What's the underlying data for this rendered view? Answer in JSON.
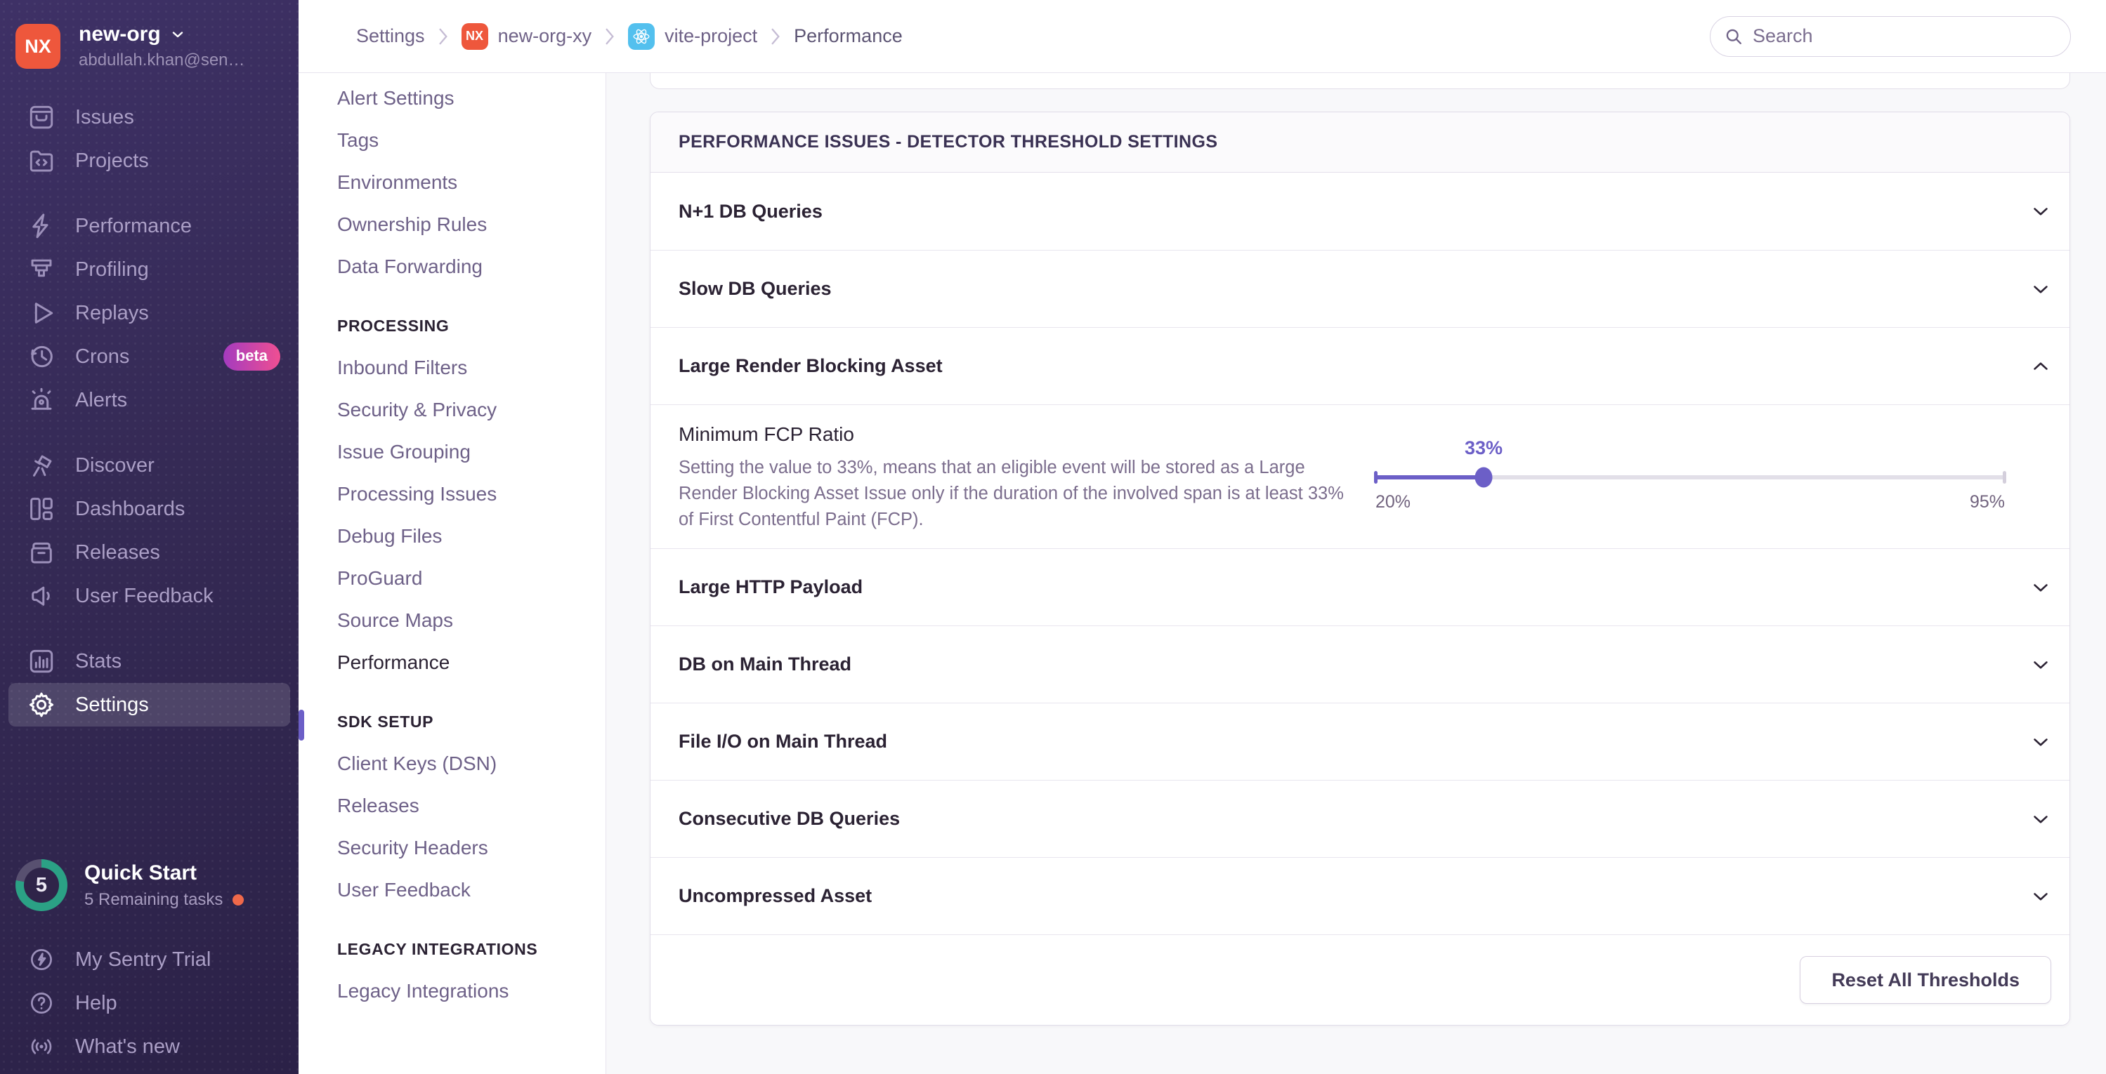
{
  "sidebar": {
    "org": {
      "initials": "NX",
      "name": "new-org",
      "email": "abdullah.khan@sen…"
    },
    "groups": [
      {
        "items": [
          {
            "label": "Issues"
          },
          {
            "label": "Projects"
          }
        ]
      },
      {
        "items": [
          {
            "label": "Performance"
          },
          {
            "label": "Profiling"
          },
          {
            "label": "Replays"
          },
          {
            "label": "Crons",
            "badge": "beta"
          },
          {
            "label": "Alerts"
          }
        ]
      },
      {
        "items": [
          {
            "label": "Discover"
          },
          {
            "label": "Dashboards"
          },
          {
            "label": "Releases"
          },
          {
            "label": "User Feedback"
          }
        ]
      },
      {
        "items": [
          {
            "label": "Stats"
          }
        ]
      },
      {
        "items": [
          {
            "label": "Settings",
            "active": true
          }
        ]
      }
    ],
    "quick_start": {
      "label": "Quick Start",
      "sub": "5 Remaining tasks",
      "count": "5"
    },
    "footer_items": [
      {
        "label": "My Sentry Trial"
      },
      {
        "label": "Help"
      },
      {
        "label": "What's new"
      }
    ]
  },
  "topbar": {
    "breadcrumbs": [
      {
        "label": "Settings"
      },
      {
        "label": "new-org-xy",
        "badge": "NX"
      },
      {
        "label": "vite-project",
        "badge": "react"
      },
      {
        "label": "Performance"
      }
    ],
    "search_placeholder": "Search"
  },
  "settings_nav": {
    "items": [
      {
        "type": "link",
        "label": "Alert Settings"
      },
      {
        "type": "link",
        "label": "Tags"
      },
      {
        "type": "link",
        "label": "Environments"
      },
      {
        "type": "link",
        "label": "Ownership Rules"
      },
      {
        "type": "link",
        "label": "Data Forwarding"
      },
      {
        "type": "heading",
        "label": "PROCESSING"
      },
      {
        "type": "link",
        "label": "Inbound Filters"
      },
      {
        "type": "link",
        "label": "Security & Privacy"
      },
      {
        "type": "link",
        "label": "Issue Grouping"
      },
      {
        "type": "link",
        "label": "Processing Issues"
      },
      {
        "type": "link",
        "label": "Debug Files"
      },
      {
        "type": "link",
        "label": "ProGuard"
      },
      {
        "type": "link",
        "label": "Source Maps"
      },
      {
        "type": "link",
        "label": "Performance",
        "active": true
      },
      {
        "type": "heading",
        "label": "SDK SETUP"
      },
      {
        "type": "link",
        "label": "Client Keys (DSN)"
      },
      {
        "type": "link",
        "label": "Releases"
      },
      {
        "type": "link",
        "label": "Security Headers"
      },
      {
        "type": "link",
        "label": "User Feedback"
      },
      {
        "type": "heading",
        "label": "LEGACY INTEGRATIONS"
      },
      {
        "type": "link",
        "label": "Legacy Integrations"
      }
    ]
  },
  "panel": {
    "header": "PERFORMANCE ISSUES - DETECTOR THRESHOLD SETTINGS",
    "rows": [
      {
        "label": "N+1 DB Queries",
        "state": "collapsed"
      },
      {
        "label": "Slow DB Queries",
        "state": "collapsed"
      },
      {
        "label": "Large Render Blocking Asset",
        "state": "expanded"
      },
      {
        "label": "Large HTTP Payload",
        "state": "collapsed"
      },
      {
        "label": "DB on Main Thread",
        "state": "collapsed"
      },
      {
        "label": "File I/O on Main Thread",
        "state": "collapsed"
      },
      {
        "label": "Consecutive DB Queries",
        "state": "collapsed"
      },
      {
        "label": "Uncompressed Asset",
        "state": "collapsed"
      }
    ],
    "expanded": {
      "setting_label": "Minimum FCP Ratio",
      "setting_description": "Setting the value to 33%, means that an eligible event will be stored as a Large Render Blocking Asset Issue only if the duration of the involved span is at least 33% of First Contentful Paint (FCP).",
      "slider": {
        "value": 33,
        "min": 20,
        "max": 95,
        "value_label": "33%",
        "min_label": "20%",
        "max_label": "95%"
      }
    },
    "footer_button": "Reset All Thresholds"
  },
  "colors": {
    "accent_purple": "#6C5FC7",
    "org_avatar": "#EE573C",
    "react_badge_bg": "#53C0EE",
    "beta_gradient": [
      "#A43BBF",
      "#EF4F92"
    ],
    "quickstart_ring_green": "#2BA185",
    "notification_dot": "#F0694A",
    "sidebar_top": "#3E3166",
    "sidebar_bottom": "#2B2147"
  }
}
